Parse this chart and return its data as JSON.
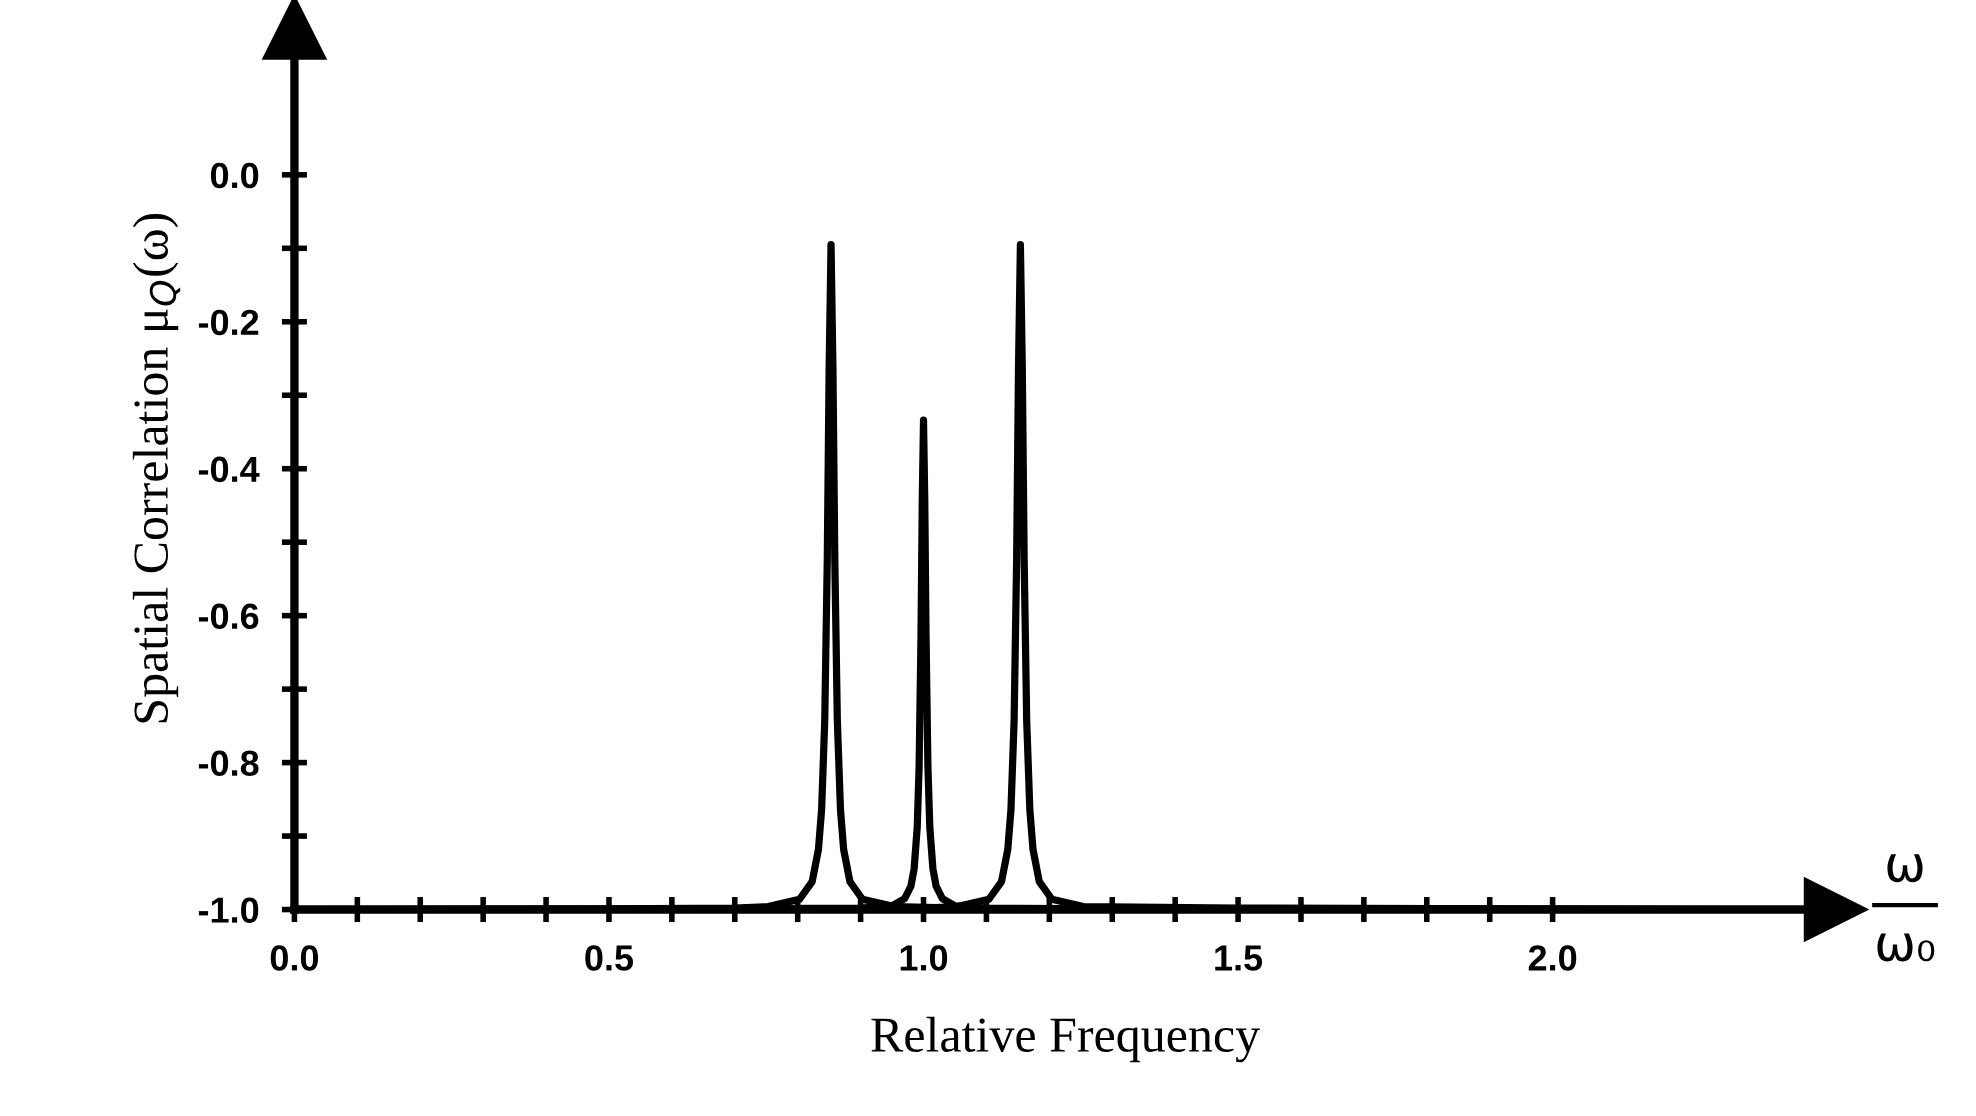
{
  "chart_data": {
    "type": "line",
    "xlabel": "Relative Frequency",
    "ylabel": "Spatial Correlation μ$_{Q}$(ω)",
    "annotations": [
      "ω",
      "ω₀"
    ],
    "series": [
      {
        "color": "#000000",
        "x": [
          0.0,
          0.5,
          0.7,
          0.753,
          0.803,
          0.823,
          0.833,
          0.838,
          0.843,
          0.847,
          0.85,
          0.853,
          0.856,
          0.859,
          0.863,
          0.868,
          0.873,
          0.883,
          0.903,
          0.953,
          1.1
        ],
        "values": [
          -1.0,
          -0.999,
          -0.998,
          -0.996,
          -0.986,
          -0.962,
          -0.918,
          -0.864,
          -0.743,
          -0.525,
          -0.262,
          -0.095,
          -0.262,
          -0.525,
          -0.743,
          -0.864,
          -0.918,
          -0.962,
          -0.986,
          -0.996,
          -0.999
        ]
      },
      {
        "color": "#000000",
        "x": [
          0.7,
          0.9,
          0.95,
          0.97,
          0.98,
          0.985,
          0.99,
          0.993,
          0.996,
          0.998,
          1.0,
          1.002,
          1.004,
          1.007,
          1.01,
          1.015,
          1.02,
          1.03,
          1.05,
          1.1,
          1.3
        ],
        "values": [
          -0.999,
          -0.998,
          -0.995,
          -0.985,
          -0.968,
          -0.945,
          -0.888,
          -0.805,
          -0.628,
          -0.444,
          -0.334,
          -0.444,
          -0.628,
          -0.805,
          -0.888,
          -0.945,
          -0.968,
          -0.985,
          -0.995,
          -0.998,
          -0.999
        ]
      },
      {
        "color": "#000000",
        "x": [
          0.9,
          1.0,
          1.054,
          1.104,
          1.124,
          1.134,
          1.139,
          1.144,
          1.148,
          1.151,
          1.154,
          1.157,
          1.16,
          1.164,
          1.169,
          1.174,
          1.184,
          1.204,
          1.254,
          1.5,
          2.3
        ],
        "values": [
          -0.999,
          -0.998,
          -0.996,
          -0.986,
          -0.962,
          -0.918,
          -0.864,
          -0.743,
          -0.525,
          -0.262,
          -0.095,
          -0.262,
          -0.525,
          -0.743,
          -0.864,
          -0.918,
          -0.962,
          -0.986,
          -0.996,
          -0.998,
          -1.0
        ]
      }
    ],
    "xlim": [
      0.0,
      2.45
    ],
    "ylim": [
      -1.0,
      0.2
    ],
    "xticks": [
      {
        "value": 0.0,
        "label": "0.0"
      },
      {
        "value": 0.1,
        "label": null
      },
      {
        "value": 0.2,
        "label": null
      },
      {
        "value": 0.3,
        "label": null
      },
      {
        "value": 0.4,
        "label": null
      },
      {
        "value": 0.5,
        "label": "0.5"
      },
      {
        "value": 0.6,
        "label": null
      },
      {
        "value": 0.7,
        "label": null
      },
      {
        "value": 0.8,
        "label": null
      },
      {
        "value": 0.9,
        "label": null
      },
      {
        "value": 1.0,
        "label": "1.0"
      },
      {
        "value": 1.1,
        "label": null
      },
      {
        "value": 1.2,
        "label": null
      },
      {
        "value": 1.3,
        "label": null
      },
      {
        "value": 1.4,
        "label": null
      },
      {
        "value": 1.5,
        "label": "1.5"
      },
      {
        "value": 1.6,
        "label": null
      },
      {
        "value": 1.7,
        "label": null
      },
      {
        "value": 1.8,
        "label": null
      },
      {
        "value": 1.9,
        "label": null
      },
      {
        "value": 2.0,
        "label": "2.0"
      }
    ],
    "yticks": [
      {
        "value": -1.0,
        "label": "-1.0"
      },
      {
        "value": -0.9,
        "label": null
      },
      {
        "value": -0.8,
        "label": "-0.8"
      },
      {
        "value": -0.7,
        "label": null
      },
      {
        "value": -0.6,
        "label": "-0.6"
      },
      {
        "value": -0.5,
        "label": null
      },
      {
        "value": -0.4,
        "label": "-0.4"
      },
      {
        "value": -0.3,
        "label": null
      },
      {
        "value": -0.2,
        "label": "-0.2"
      },
      {
        "value": -0.1,
        "label": null
      },
      {
        "value": 0.0,
        "label": "0.0"
      }
    ],
    "grid": false,
    "legend": false,
    "marker": "none",
    "line_style": "solid"
  }
}
